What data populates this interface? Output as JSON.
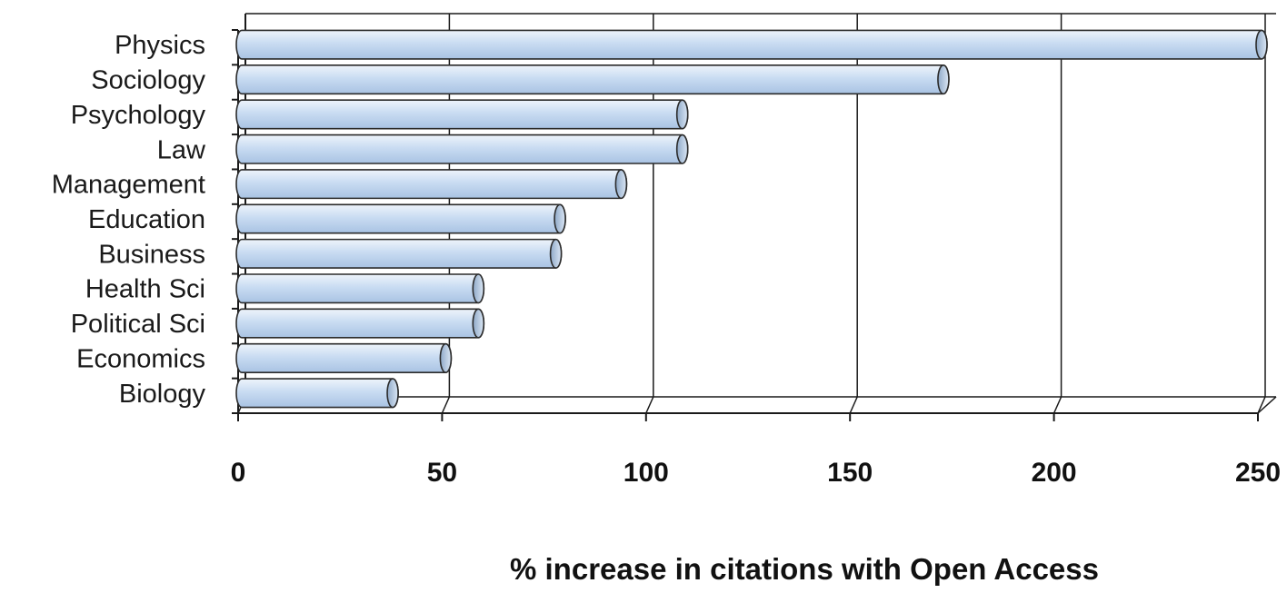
{
  "chart_data": {
    "type": "bar",
    "orientation": "horizontal",
    "categories": [
      "Physics",
      "Sociology",
      "Psychology",
      "Law",
      "Management",
      "Education",
      "Business",
      "Health Sci",
      "Political Sci",
      "Economics",
      "Biology"
    ],
    "values": [
      250,
      172,
      108,
      108,
      93,
      78,
      77,
      58,
      58,
      50,
      37
    ],
    "xlabel": "% increase in citations with Open Access",
    "ylabel": "",
    "xlim": [
      0,
      250
    ],
    "xticks": [
      "0",
      "50",
      "100",
      "150",
      "200",
      "250"
    ],
    "grid": "vertical",
    "legend": "none",
    "colors": {
      "bar_fill": "#c9dcf2",
      "bar_stroke": "#2b2b2b",
      "gridline": "#1a1a1a"
    }
  }
}
